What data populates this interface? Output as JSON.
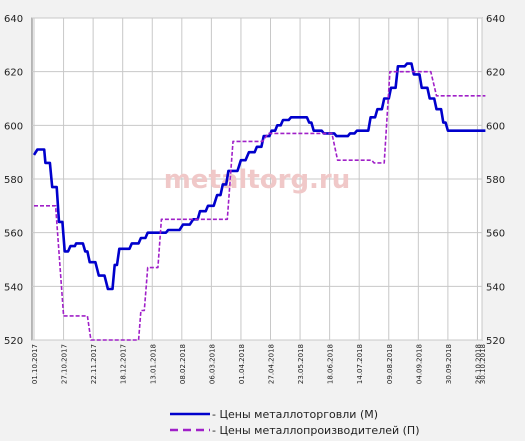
{
  "chart_data": {
    "type": "line",
    "watermark": "metaltorg.ru",
    "ylim": [
      520,
      640
    ],
    "yticks": [
      520,
      540,
      560,
      580,
      600,
      620,
      640
    ],
    "x_tick_labels": [
      "01.10.2017",
      "27.10.2017",
      "22.11.2017",
      "18.12.2017",
      "13.01.2018",
      "08.02.2018",
      "06.03.2018",
      "01.04.2018",
      "27.04.2018",
      "23.05.2018",
      "18.06.2018",
      "14.07.2018",
      "09.08.2018",
      "04.09.2018",
      "30.09.2018",
      "26.10.2018",
      "30.10.2018"
    ],
    "grid": true,
    "legend_position": "bottom",
    "series": [
      {
        "name": "- Цены металлоторговли (М)",
        "color": "#0000cc",
        "style": "solid",
        "points": [
          [
            "01.10.2017",
            589
          ],
          [
            "04.10.2017",
            591
          ],
          [
            "10.10.2017",
            591
          ],
          [
            "11.10.2017",
            586
          ],
          [
            "15.10.2017",
            586
          ],
          [
            "17.10.2017",
            577
          ],
          [
            "21.10.2017",
            577
          ],
          [
            "23.10.2017",
            564
          ],
          [
            "26.10.2017",
            564
          ],
          [
            "28.10.2017",
            553
          ],
          [
            "31.10.2017",
            553
          ],
          [
            "02.11.2017",
            555
          ],
          [
            "06.11.2017",
            555
          ],
          [
            "07.11.2017",
            556
          ],
          [
            "13.11.2017",
            556
          ],
          [
            "15.11.2017",
            553
          ],
          [
            "17.11.2017",
            553
          ],
          [
            "19.11.2017",
            549
          ],
          [
            "24.11.2017",
            549
          ],
          [
            "27.11.2017",
            544
          ],
          [
            "02.12.2017",
            544
          ],
          [
            "05.12.2017",
            539
          ],
          [
            "09.12.2017",
            539
          ],
          [
            "11.12.2017",
            548
          ],
          [
            "13.12.2017",
            548
          ],
          [
            "15.12.2017",
            554
          ],
          [
            "24.12.2017",
            554
          ],
          [
            "26.12.2017",
            556
          ],
          [
            "01.01.2018",
            556
          ],
          [
            "03.01.2018",
            558
          ],
          [
            "07.01.2018",
            558
          ],
          [
            "09.01.2018",
            560
          ],
          [
            "25.01.2018",
            560
          ],
          [
            "27.01.2018",
            561
          ],
          [
            "06.02.2018",
            561
          ],
          [
            "09.02.2018",
            563
          ],
          [
            "15.02.2018",
            563
          ],
          [
            "18.02.2018",
            565
          ],
          [
            "22.02.2018",
            565
          ],
          [
            "24.02.2018",
            568
          ],
          [
            "01.03.2018",
            568
          ],
          [
            "03.03.2018",
            570
          ],
          [
            "08.03.2018",
            570
          ],
          [
            "11.03.2018",
            574
          ],
          [
            "14.03.2018",
            574
          ],
          [
            "16.03.2018",
            578
          ],
          [
            "19.03.2018",
            578
          ],
          [
            "21.03.2018",
            583
          ],
          [
            "29.03.2018",
            583
          ],
          [
            "01.04.2018",
            587
          ],
          [
            "05.04.2018",
            587
          ],
          [
            "08.04.2018",
            590
          ],
          [
            "13.04.2018",
            590
          ],
          [
            "15.04.2018",
            592
          ],
          [
            "19.04.2018",
            592
          ],
          [
            "21.04.2018",
            596
          ],
          [
            "26.04.2018",
            596
          ],
          [
            "28.04.2018",
            598
          ],
          [
            "01.05.2018",
            598
          ],
          [
            "03.05.2018",
            600
          ],
          [
            "06.05.2018",
            600
          ],
          [
            "08.05.2018",
            602
          ],
          [
            "13.05.2018",
            602
          ],
          [
            "15.05.2018",
            603
          ],
          [
            "29.05.2018",
            603
          ],
          [
            "31.05.2018",
            601
          ],
          [
            "02.06.2018",
            601
          ],
          [
            "04.06.2018",
            598
          ],
          [
            "11.06.2018",
            598
          ],
          [
            "13.06.2018",
            597
          ],
          [
            "22.06.2018",
            597
          ],
          [
            "24.06.2018",
            596
          ],
          [
            "04.07.2018",
            596
          ],
          [
            "06.07.2018",
            597
          ],
          [
            "10.07.2018",
            597
          ],
          [
            "12.07.2018",
            598
          ],
          [
            "22.07.2018",
            598
          ],
          [
            "24.07.2018",
            603
          ],
          [
            "28.07.2018",
            603
          ],
          [
            "30.07.2018",
            606
          ],
          [
            "03.08.2018",
            606
          ],
          [
            "05.08.2018",
            610
          ],
          [
            "09.08.2018",
            610
          ],
          [
            "11.08.2018",
            614
          ],
          [
            "15.08.2018",
            614
          ],
          [
            "17.08.2018",
            622
          ],
          [
            "23.08.2018",
            622
          ],
          [
            "25.08.2018",
            623
          ],
          [
            "29.08.2018",
            623
          ],
          [
            "31.08.2018",
            619
          ],
          [
            "05.09.2018",
            619
          ],
          [
            "07.09.2018",
            614
          ],
          [
            "12.09.2018",
            614
          ],
          [
            "14.09.2018",
            610
          ],
          [
            "18.09.2018",
            610
          ],
          [
            "20.09.2018",
            606
          ],
          [
            "24.09.2018",
            606
          ],
          [
            "26.09.2018",
            601
          ],
          [
            "28.09.2018",
            601
          ],
          [
            "30.09.2018",
            598
          ],
          [
            "02.11.2018",
            598
          ]
        ]
      },
      {
        "name": "- Цены металлопроизводителей (П)",
        "color": "#a020c8",
        "style": "dashed",
        "points": [
          [
            "01.10.2017",
            570
          ],
          [
            "20.10.2017",
            570
          ],
          [
            "27.10.2017",
            529
          ],
          [
            "17.11.2017",
            529
          ],
          [
            "20.11.2017",
            520
          ],
          [
            "01.01.2018",
            520
          ],
          [
            "03.01.2018",
            531
          ],
          [
            "06.01.2018",
            531
          ],
          [
            "09.01.2018",
            547
          ],
          [
            "18.01.2018",
            547
          ],
          [
            "21.01.2018",
            565
          ],
          [
            "20.03.2018",
            565
          ],
          [
            "25.03.2018",
            594
          ],
          [
            "20.04.2018",
            594
          ],
          [
            "25.04.2018",
            597
          ],
          [
            "20.06.2018",
            597
          ],
          [
            "25.06.2018",
            587
          ],
          [
            "25.07.2018",
            587
          ],
          [
            "27.07.2018",
            586
          ],
          [
            "05.08.2018",
            586
          ],
          [
            "10.08.2018",
            620
          ],
          [
            "15.09.2018",
            620
          ],
          [
            "20.09.2018",
            611
          ],
          [
            "02.11.2018",
            611
          ]
        ]
      }
    ]
  }
}
